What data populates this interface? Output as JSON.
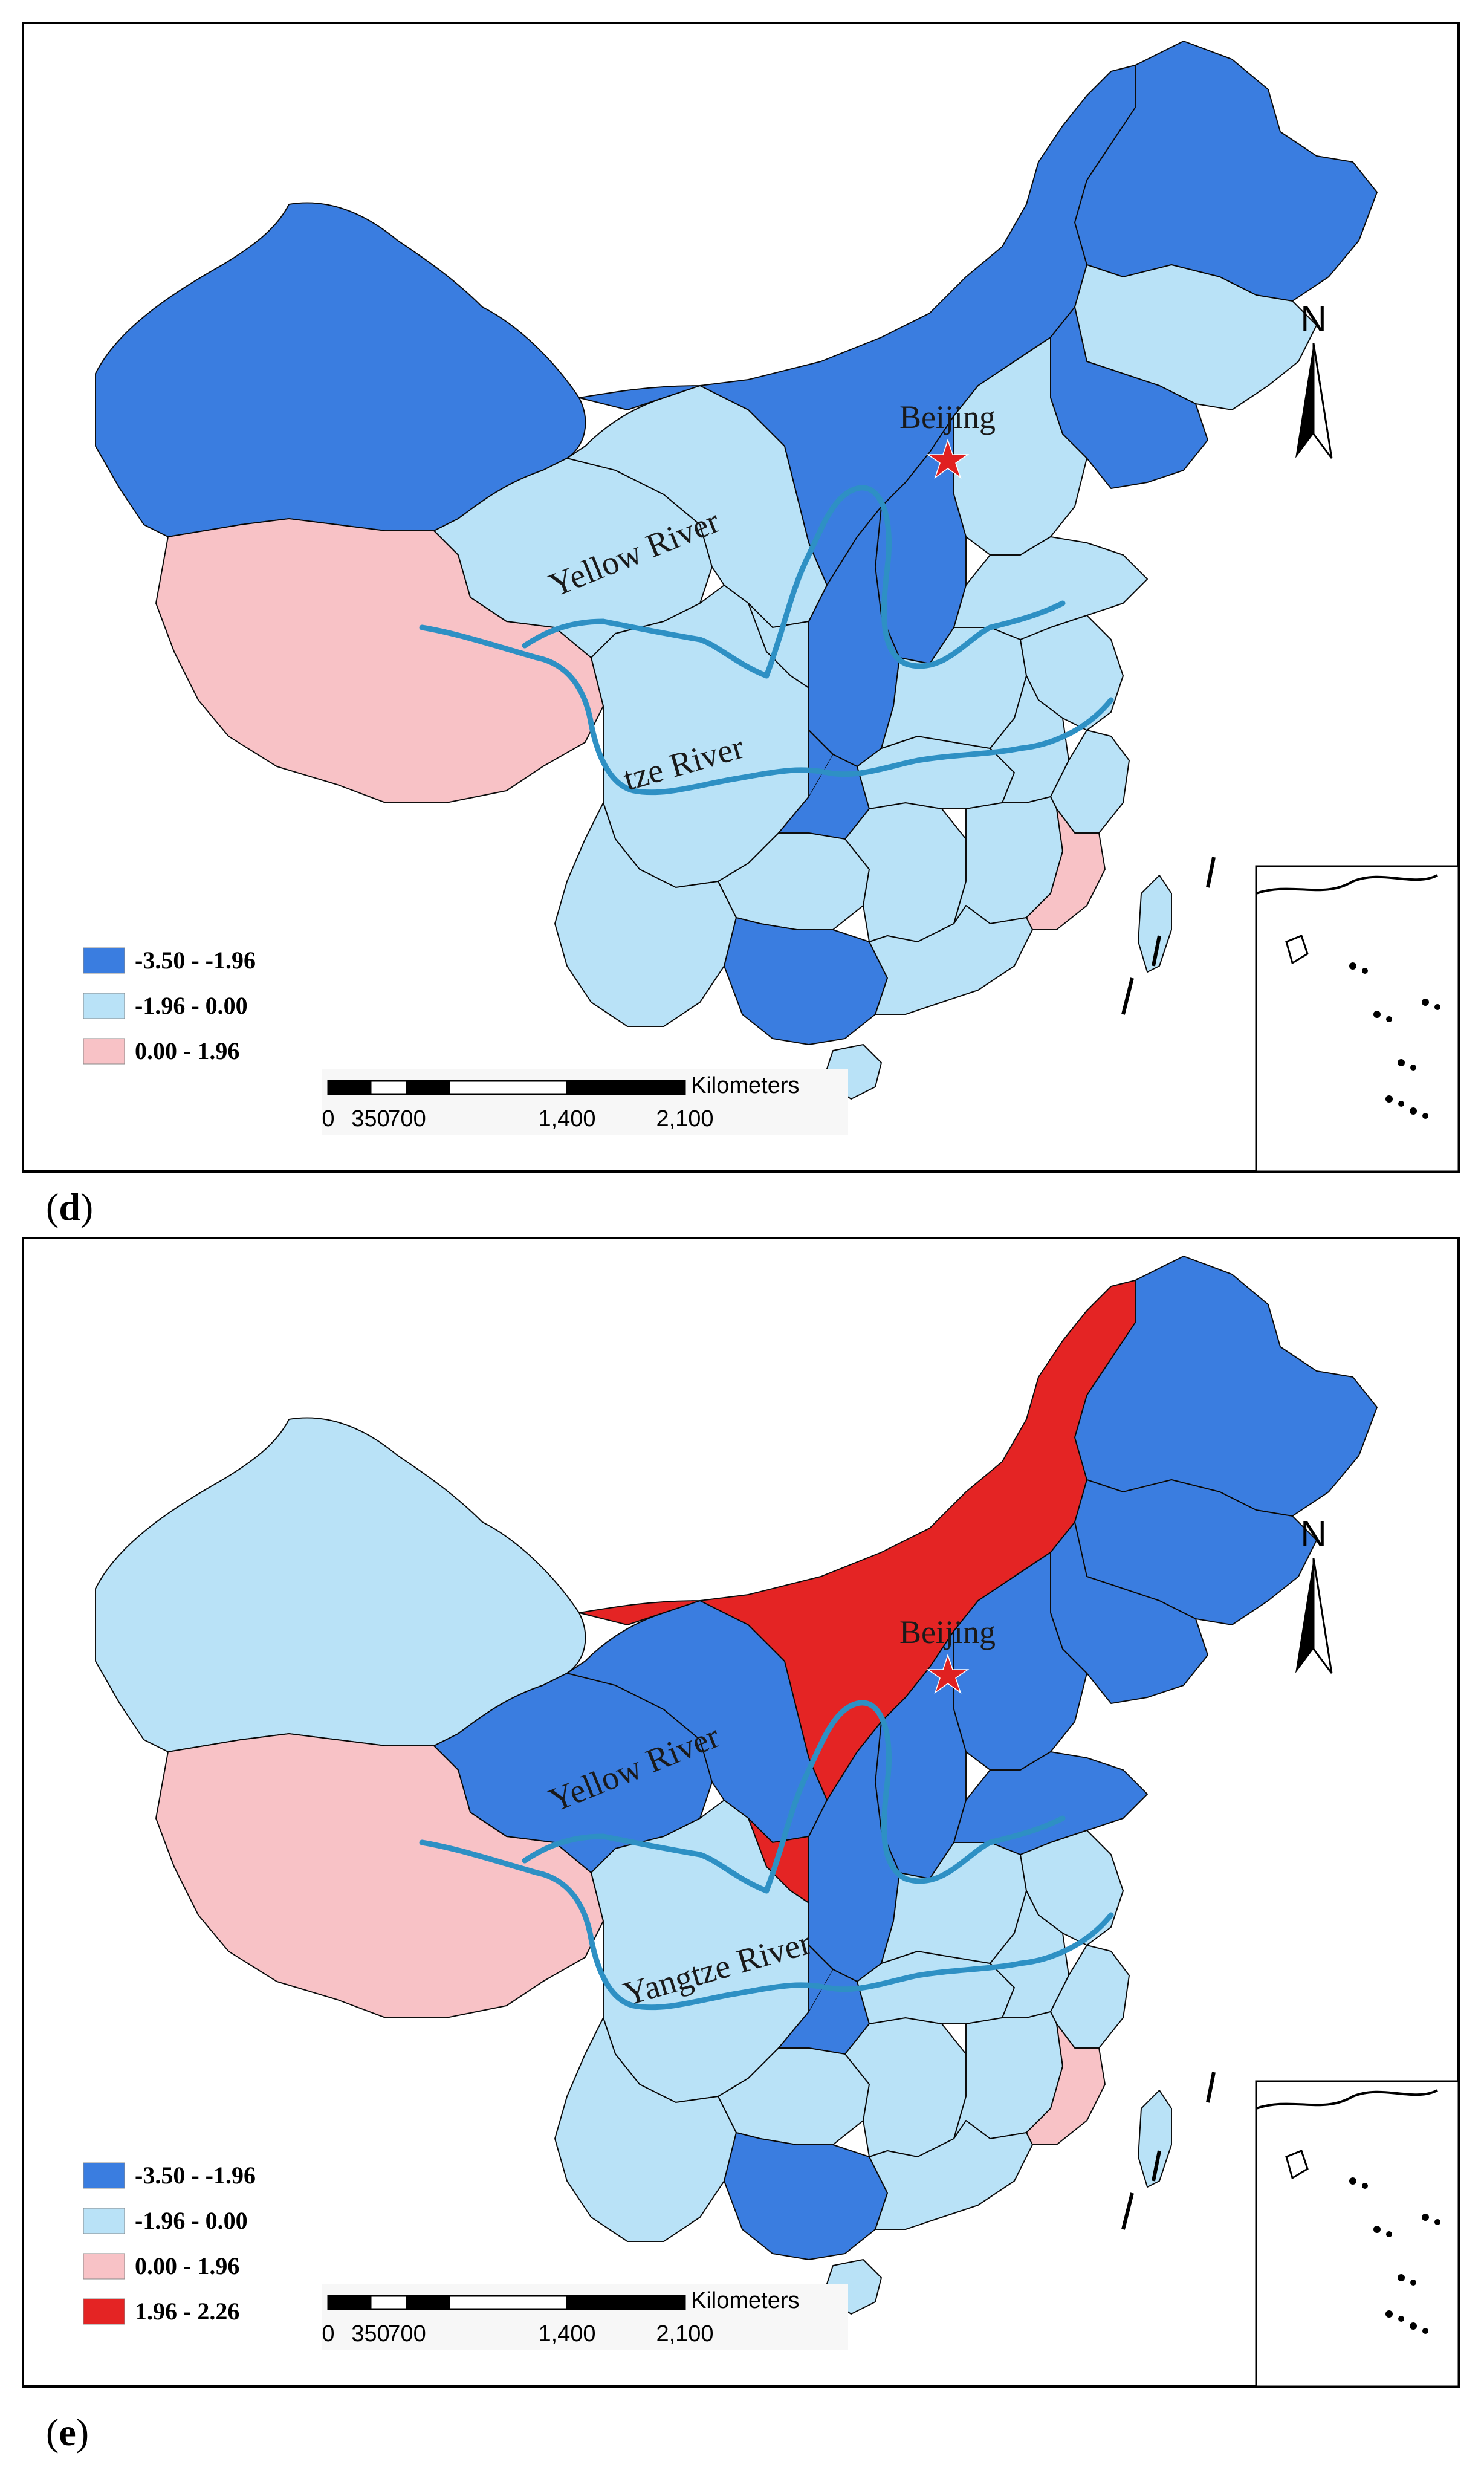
{
  "colors": {
    "class_a": "#3a7de0",
    "class_b": "#b9e2f7",
    "class_c": "#f8c2c6",
    "class_d": "#e42424",
    "river": "#2e90c4",
    "border": "#000000",
    "star": "#e02020"
  },
  "maps": [
    {
      "panel_label_open": "(",
      "panel_letter": "d",
      "panel_label_close": ")",
      "legend": [
        {
          "label": "-3.50 - -1.96",
          "color": "#3a7de0"
        },
        {
          "label": "-1.96 - 0.00",
          "color": "#b9e2f7"
        },
        {
          "label": "0.00 - 1.96",
          "color": "#f8c2c6"
        }
      ],
      "labels": {
        "capital": "Beijing",
        "river1": "Yellow River",
        "river2": "tze River"
      },
      "north": "N",
      "scalebar": {
        "unit": "Kilometers",
        "ticks": [
          "0",
          "350",
          "700",
          "1,400",
          "2,100"
        ]
      },
      "regions": {
        "xinjiang": "a",
        "tibet": "c",
        "qinghai": "b",
        "gansu": "b",
        "inner_mongolia": "a",
        "heilongjiang": "a",
        "jilin": "b",
        "liaoning": "a",
        "hebei": "b",
        "shanxi": "a",
        "shaanxi": "a",
        "ningxia": "b",
        "sichuan": "b",
        "yunnan": "b",
        "guangxi": "a",
        "guangdong": "b",
        "hunan": "b",
        "hubei": "b",
        "henan": "b",
        "shandong": "b",
        "jiangsu": "b",
        "anhui": "b",
        "jiangxi": "b",
        "fujian": "c",
        "zhejiang": "b",
        "guizhou": "b",
        "chongqing": "a",
        "taiwan": "b",
        "hainan": "b"
      }
    },
    {
      "panel_label_open": "(",
      "panel_letter": "e",
      "panel_label_close": ")",
      "legend": [
        {
          "label": "-3.50 - -1.96",
          "color": "#3a7de0"
        },
        {
          "label": "-1.96 - 0.00",
          "color": "#b9e2f7"
        },
        {
          "label": "0.00 - 1.96",
          "color": "#f8c2c6"
        },
        {
          "label": "1.96 - 2.26",
          "color": "#e42424"
        }
      ],
      "labels": {
        "capital": "Beijing",
        "river1": "Yellow River",
        "river2": "Yangtze River"
      },
      "north": "N",
      "scalebar": {
        "unit": "Kilometers",
        "ticks": [
          "0",
          "350",
          "700",
          "1,400",
          "2,100"
        ]
      },
      "regions": {
        "xinjiang": "b",
        "tibet": "c",
        "qinghai": "a",
        "gansu": "a",
        "inner_mongolia": "d",
        "heilongjiang": "a",
        "jilin": "a",
        "liaoning": "a",
        "hebei": "a",
        "shanxi": "a",
        "shaanxi": "a",
        "ningxia": "d",
        "sichuan": "b",
        "yunnan": "b",
        "guangxi": "a",
        "guangdong": "b",
        "hunan": "b",
        "hubei": "b",
        "henan": "b",
        "shandong": "a",
        "jiangsu": "b",
        "anhui": "b",
        "jiangxi": "b",
        "fujian": "c",
        "zhejiang": "b",
        "guizhou": "b",
        "chongqing": "a",
        "taiwan": "b",
        "hainan": "b"
      }
    }
  ]
}
